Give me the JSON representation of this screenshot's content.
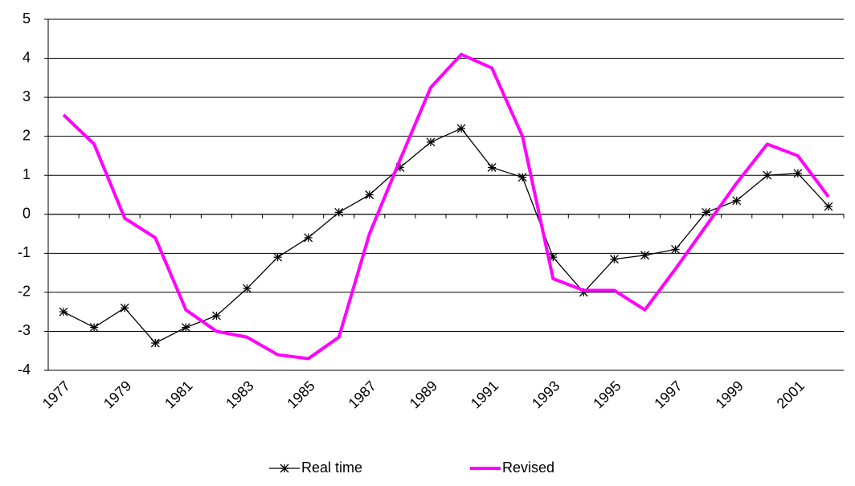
{
  "chart_data": {
    "type": "line",
    "categories": [
      "1977",
      null,
      "1979",
      null,
      "1981",
      null,
      "1983",
      null,
      "1985",
      null,
      "1987",
      null,
      "1989",
      null,
      "1991",
      null,
      "1993",
      null,
      "1995",
      null,
      "1997",
      null,
      "1999",
      null,
      "2001",
      null
    ],
    "series": [
      {
        "name": "Real time",
        "color": "#000000",
        "marker": "star",
        "values": [
          -2.5,
          -2.9,
          -2.4,
          -3.3,
          -2.9,
          -2.6,
          -1.9,
          -1.1,
          -0.6,
          0.05,
          0.5,
          1.2,
          1.85,
          2.2,
          1.2,
          0.95,
          -1.1,
          -2.0,
          -1.15,
          -1.05,
          -0.9,
          0.05,
          0.35,
          1.0,
          1.05,
          0.2
        ]
      },
      {
        "name": "Revised",
        "color": "#ff00ff",
        "values": [
          2.55,
          1.8,
          -0.1,
          -0.6,
          -2.45,
          -3.0,
          -3.15,
          -3.6,
          -3.7,
          -3.15,
          -0.5,
          1.4,
          3.25,
          4.1,
          3.75,
          2.0,
          -1.65,
          -1.95,
          -1.95,
          -2.45,
          -1.4,
          -0.3,
          0.8,
          1.8,
          1.5,
          0.45
        ]
      }
    ],
    "ylim": [
      -4,
      5
    ],
    "yticks": [
      -4,
      -3,
      -2,
      -1,
      0,
      1,
      2,
      3,
      4,
      5
    ],
    "grid": true,
    "legend": "bottom"
  }
}
